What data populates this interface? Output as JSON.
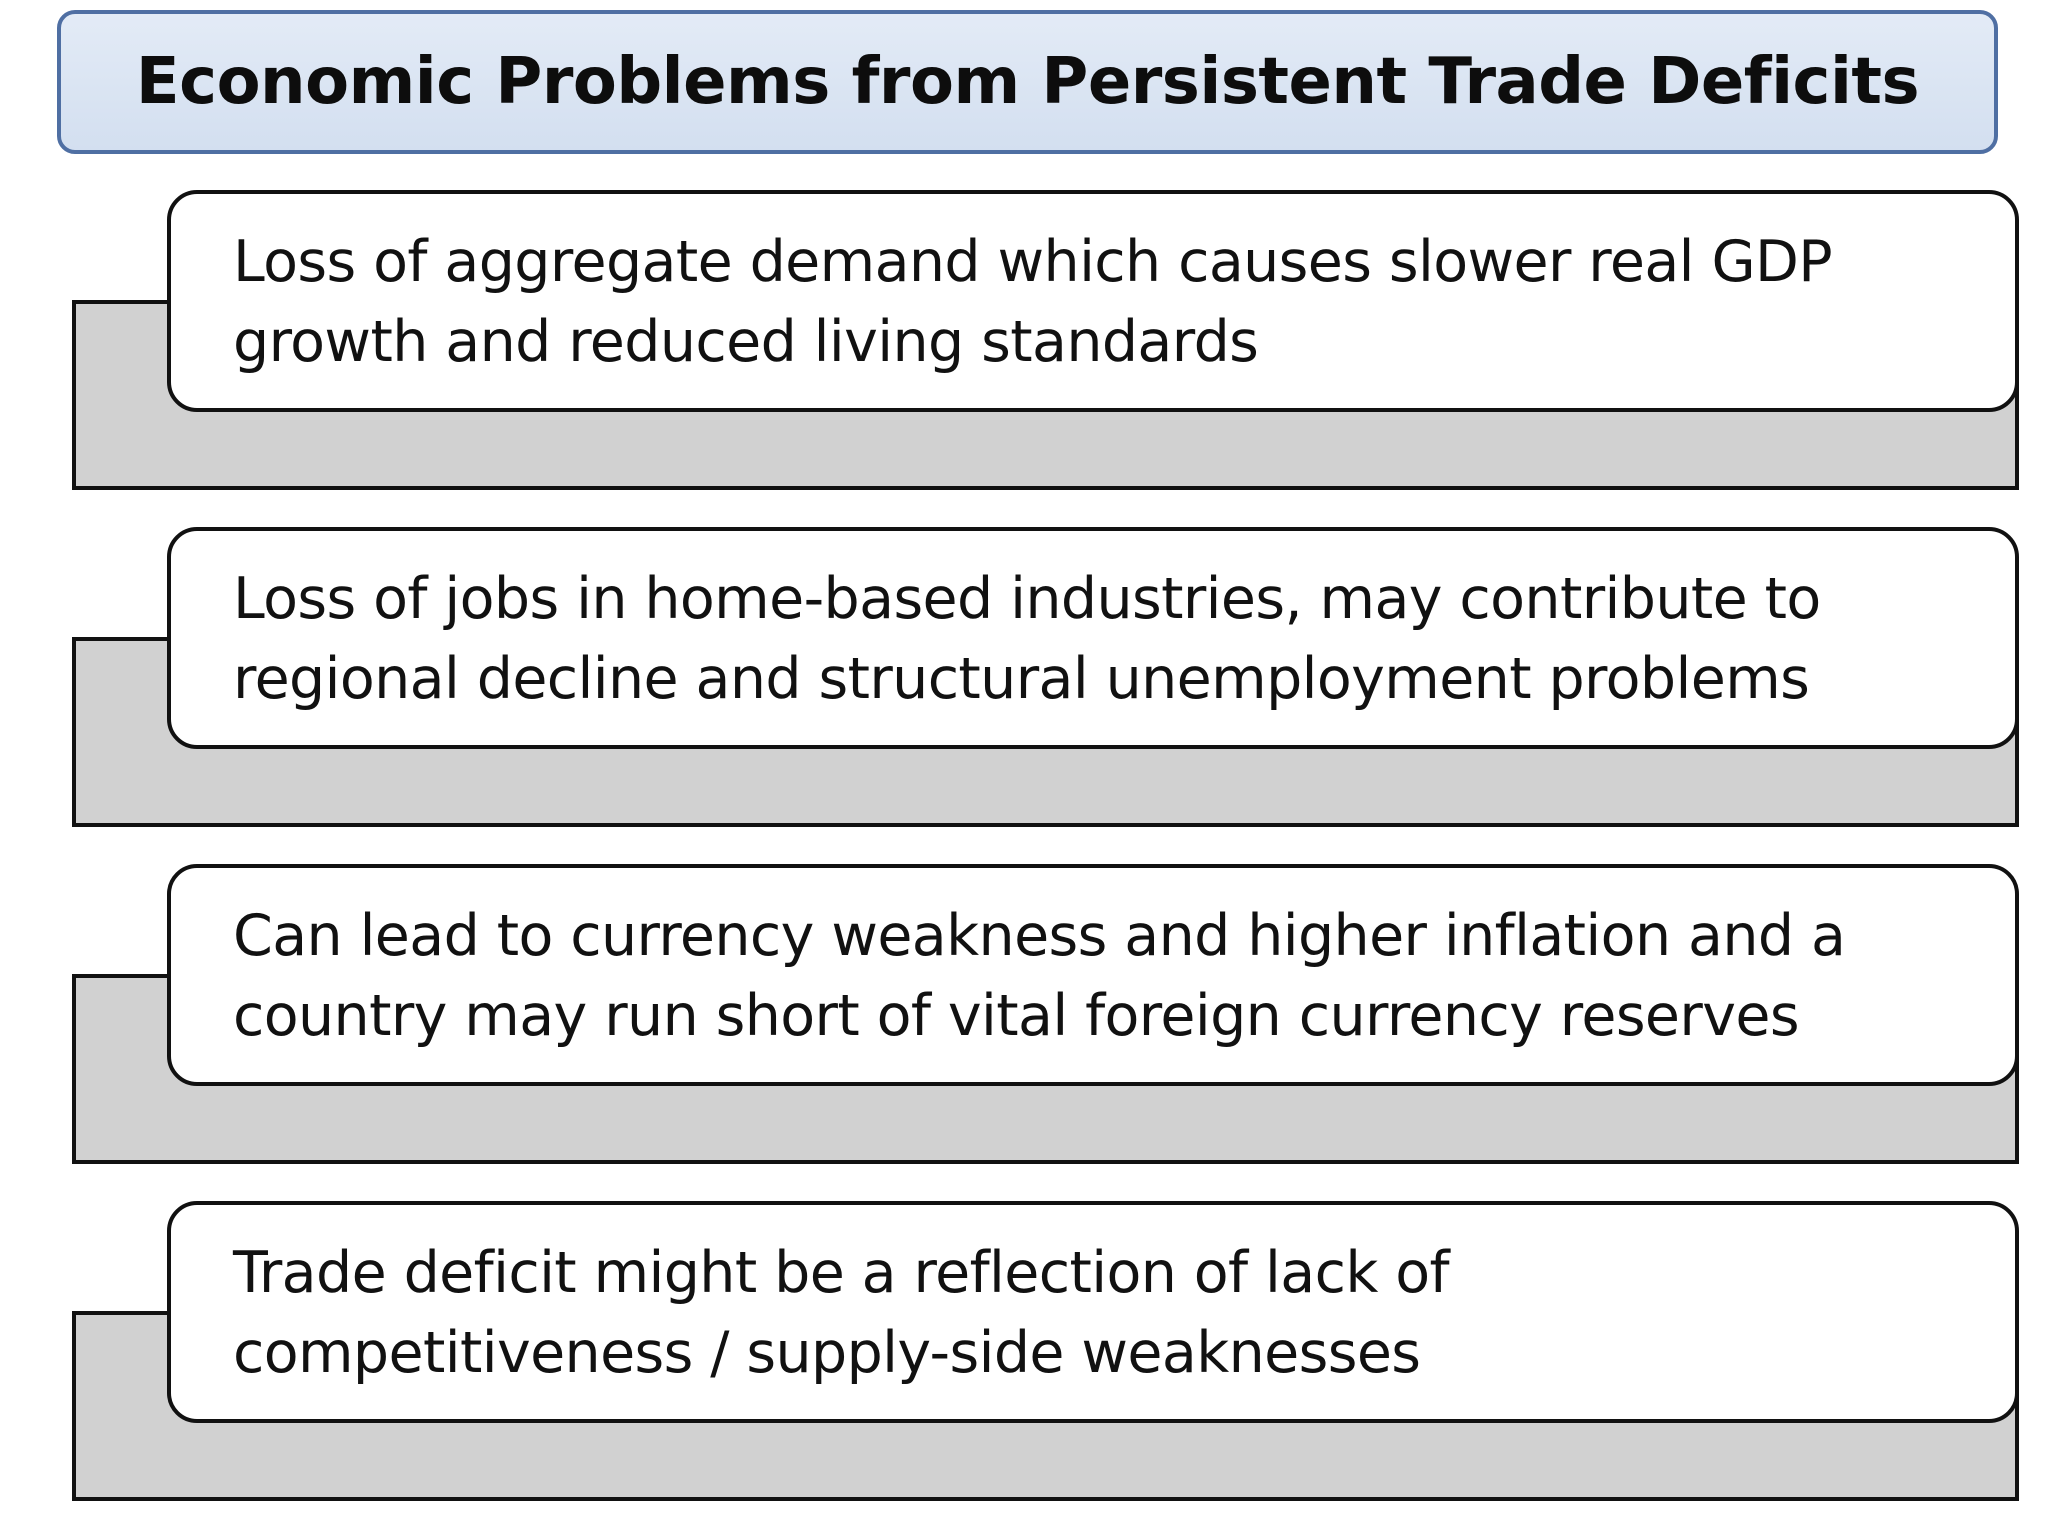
{
  "title": "Economic Problems from Persistent Trade Deficits",
  "items": [
    {
      "line1": "Loss of aggregate demand which causes slower real GDP",
      "line2": "growth and reduced living standards"
    },
    {
      "line1": "Loss of jobs in home-based industries, may contribute to",
      "line2": "regional decline and structural unemployment problems"
    },
    {
      "line1": "Can lead to currency weakness and higher inflation and a",
      "line2": "country may run short of vital foreign currency reserves"
    },
    {
      "line1": "Trade deficit might be a reflection of lack of",
      "line2": "competitiveness / supply-side weaknesses"
    }
  ],
  "colors": {
    "title_fill": "#d3dff0",
    "title_border": "#4f6fa3",
    "panel_fill": "#d1d1d1",
    "card_fill": "#ffffff",
    "outline": "#111111"
  }
}
